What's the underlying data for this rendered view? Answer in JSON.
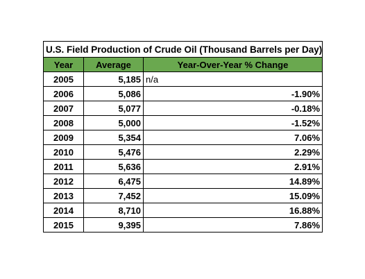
{
  "chart_data": {
    "type": "table",
    "title": "U.S. Field Production of Crude Oil (Thousand Barrels per Day)",
    "columns": [
      "Year",
      "Average",
      "Year-Over-Year % Change"
    ],
    "header_color": "#6aa84f",
    "rows": [
      {
        "year": "2005",
        "average": "5,185",
        "yoy": "n/a"
      },
      {
        "year": "2006",
        "average": "5,086",
        "yoy": "-1.90%"
      },
      {
        "year": "2007",
        "average": "5,077",
        "yoy": "-0.18%"
      },
      {
        "year": "2008",
        "average": "5,000",
        "yoy": "-1.52%"
      },
      {
        "year": "2009",
        "average": "5,354",
        "yoy": "7.06%"
      },
      {
        "year": "2010",
        "average": "5,476",
        "yoy": "2.29%"
      },
      {
        "year": "2011",
        "average": "5,636",
        "yoy": "2.91%"
      },
      {
        "year": "2012",
        "average": "6,475",
        "yoy": "14.89%"
      },
      {
        "year": "2013",
        "average": "7,452",
        "yoy": "15.09%"
      },
      {
        "year": "2014",
        "average": "8,710",
        "yoy": "16.88%"
      },
      {
        "year": "2015",
        "average": "9,395",
        "yoy": "7.86%"
      }
    ]
  }
}
